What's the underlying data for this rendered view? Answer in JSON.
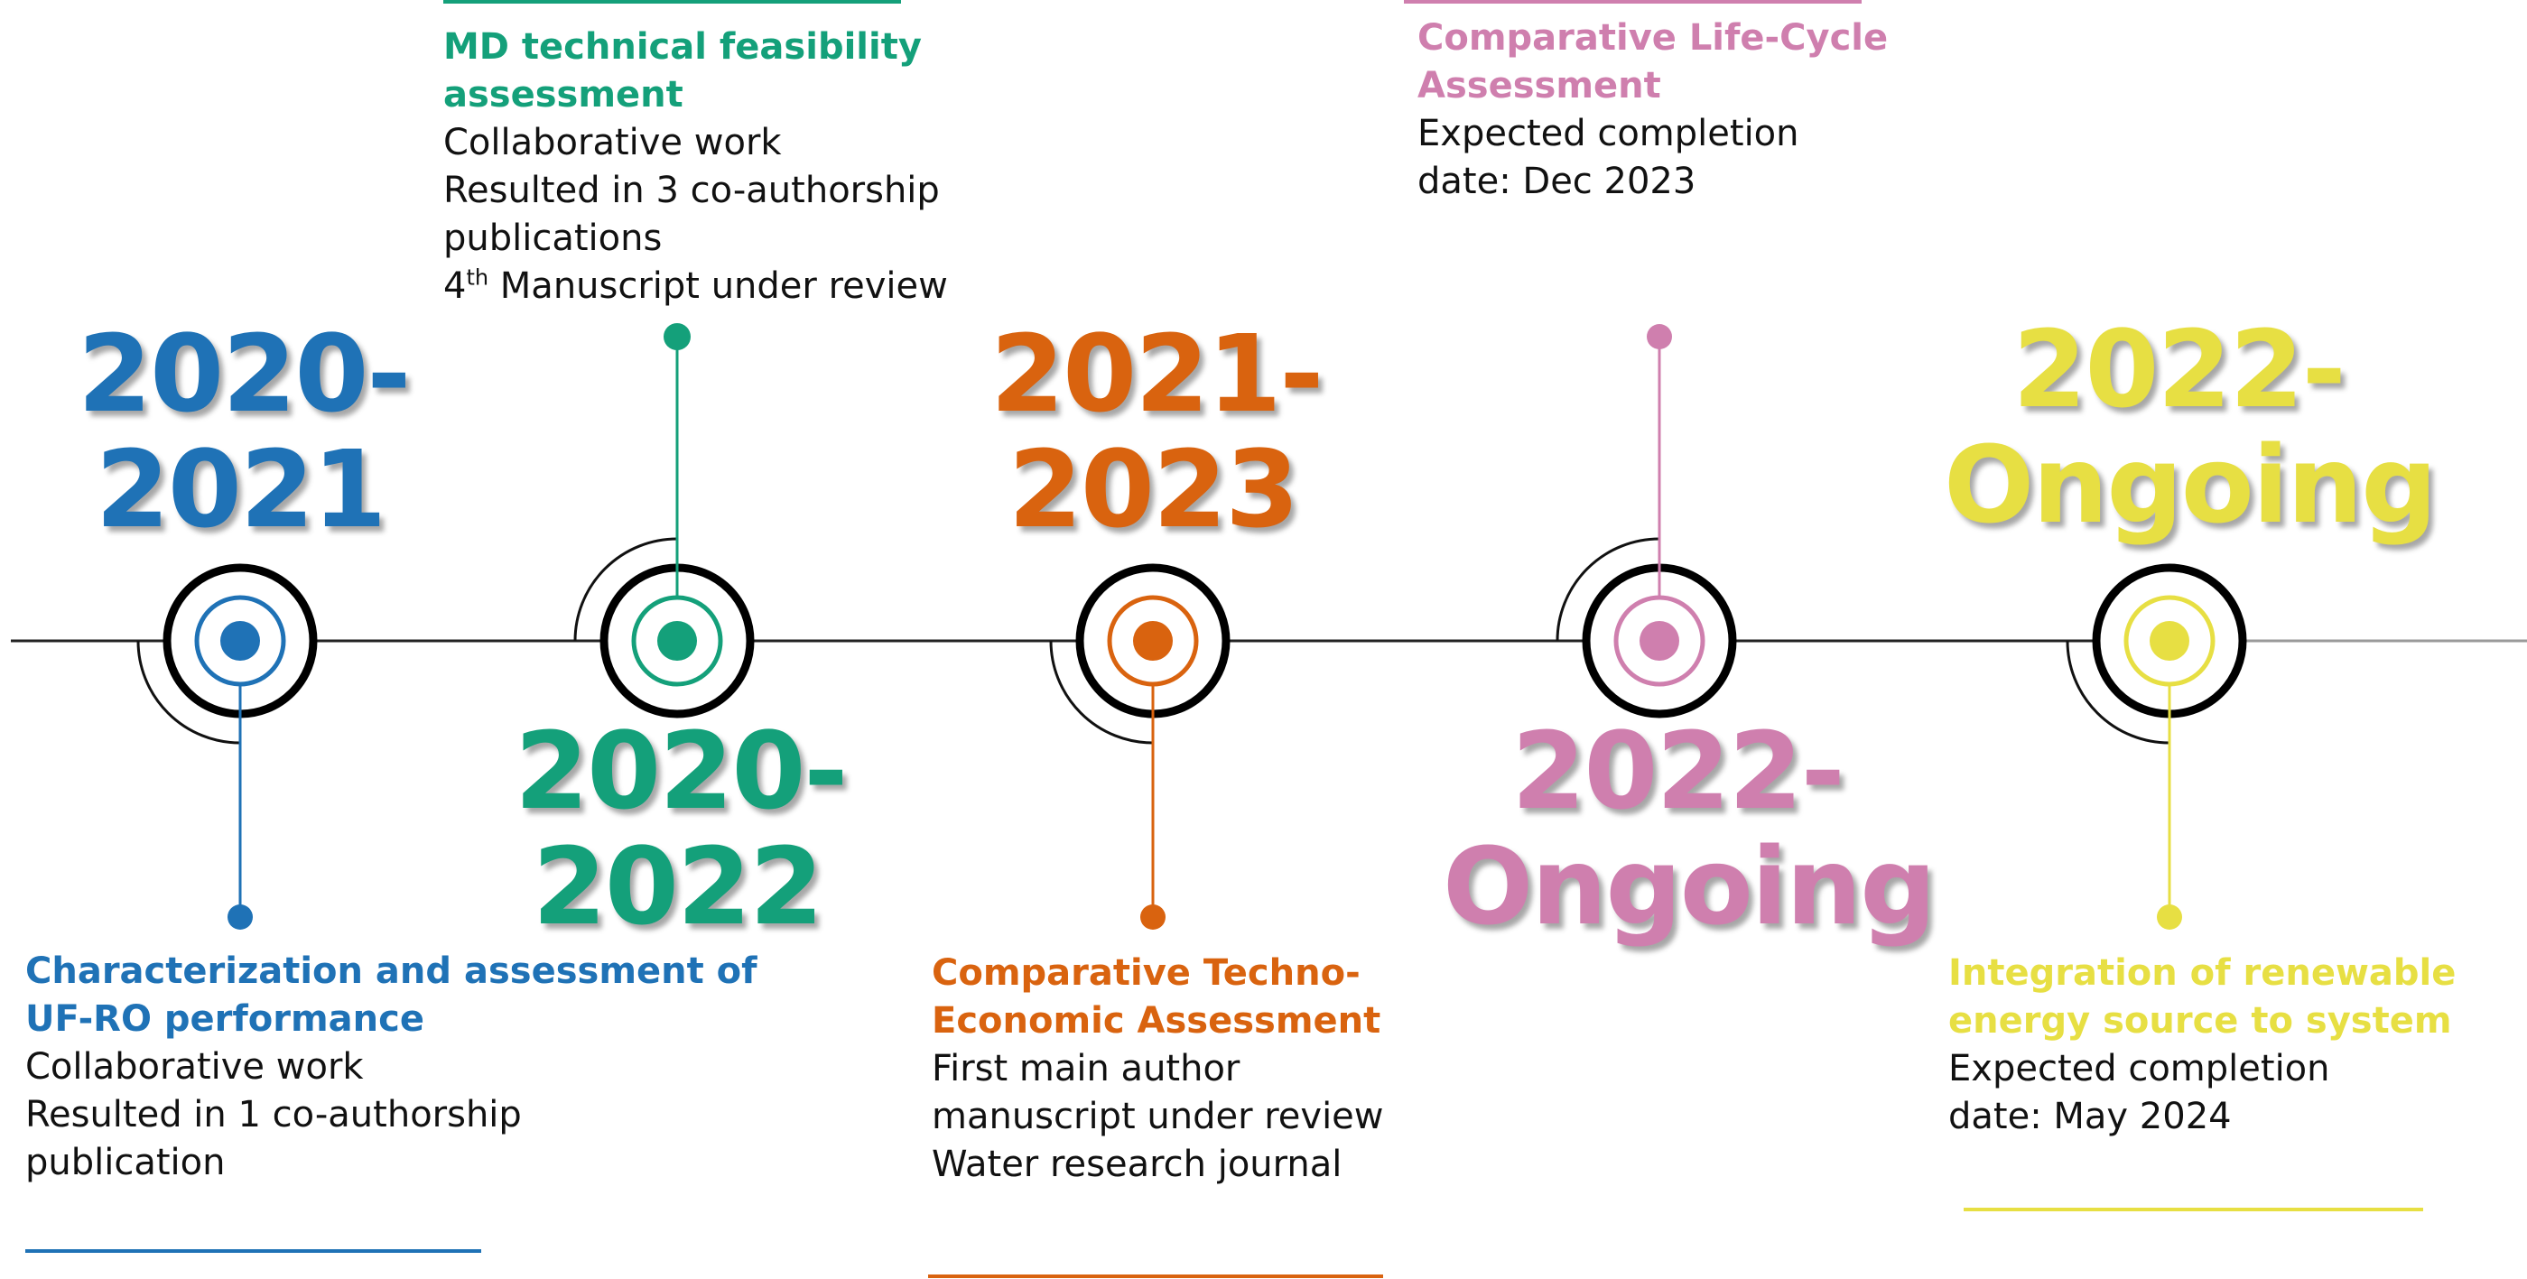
{
  "colors": {
    "blue": "#1f72b6",
    "green": "#14a07a",
    "orange": "#d9630f",
    "pink": "#cf7fae",
    "yellow": "#e7df43",
    "ring": "#000000",
    "axis": "#222222"
  },
  "milestones": [
    {
      "id": "m1",
      "color": "#1f72b6",
      "year_line1": "2020-",
      "year_line2": "2021",
      "title_line1": "Characterization and assessment of",
      "title_line2": "UF-RO performance",
      "body": [
        "Collaborative work",
        "Resulted in 1 co-authorship",
        "publication"
      ]
    },
    {
      "id": "m2",
      "color": "#14a07a",
      "year_line1": "2020-",
      "year_line2": "2022",
      "title_line1": "MD technical feasibility",
      "title_line2": "assessment",
      "body": [
        "Collaborative work",
        "Resulted in 3 co-authorship",
        "publications"
      ],
      "body_last_prefix": "4",
      "body_last_sup": "th",
      "body_last_rest": " Manuscript under review"
    },
    {
      "id": "m3",
      "color": "#d9630f",
      "year_line1": "2021-",
      "year_line2": "2023",
      "title_line1": "Comparative Techno-",
      "title_line2": "Economic Assessment",
      "body": [
        "First main author",
        "manuscript under review",
        "Water research journal"
      ]
    },
    {
      "id": "m4",
      "color": "#cf7fae",
      "year_line1": "2022-",
      "year_line2": "Ongoing",
      "title_line1": "Comparative Life-Cycle",
      "title_line2": "Assessment",
      "body": [
        "Expected completion",
        "date: Dec 2023"
      ]
    },
    {
      "id": "m5",
      "color": "#e7df43",
      "year_line1": "2022-",
      "year_line2": "Ongoing",
      "title_line1": "Integration of renewable",
      "title_line2": "energy source to system",
      "body": [
        "Expected completion",
        "date: May 2024"
      ]
    }
  ]
}
